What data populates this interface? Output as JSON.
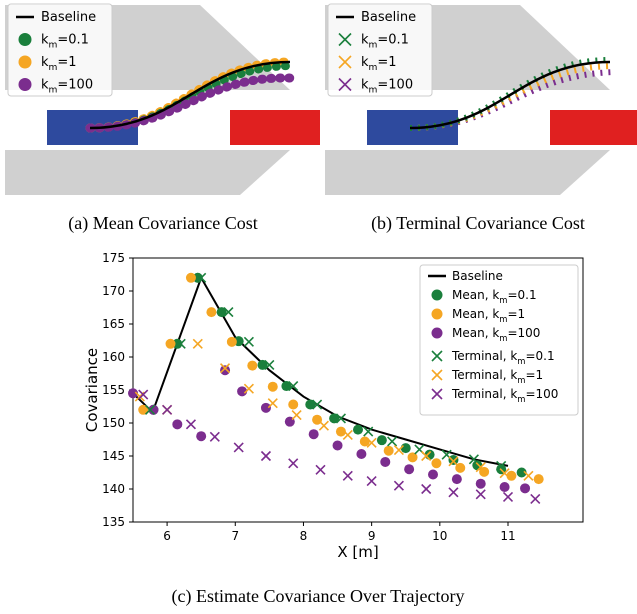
{
  "panels": [
    {
      "caption": "(a) Mean Covariance Cost",
      "marker": "o",
      "legend": [
        {
          "name": "Baseline",
          "color": "#000000"
        },
        {
          "name": "km=0.1",
          "color": "#1a7f3c"
        },
        {
          "name": "km=1",
          "color": "#f5a623"
        },
        {
          "name": "km=100",
          "color": "#7b2d8e"
        }
      ]
    },
    {
      "caption": "(b) Terminal Covariance Cost",
      "marker": "x",
      "legend": [
        {
          "name": "Baseline",
          "color": "#000000"
        },
        {
          "name": "km=0.1",
          "color": "#1a7f3c"
        },
        {
          "name": "km=1",
          "color": "#f5a623"
        },
        {
          "name": "km=100",
          "color": "#7b2d8e"
        }
      ]
    }
  ],
  "chart_data": {
    "type": "scatter",
    "caption": "(c) Estimate Covariance Over Trajectory",
    "x_label": "X [m]",
    "y_label": "Covariance",
    "xlim": [
      5.5,
      12.1
    ],
    "ylim": [
      135,
      175
    ],
    "xticks": [
      6,
      7,
      8,
      9,
      10,
      11
    ],
    "yticks": [
      135,
      140,
      145,
      150,
      155,
      160,
      165,
      170,
      175
    ],
    "series": [
      {
        "name": "Baseline",
        "color": "#000000",
        "marker": "line",
        "x": [
          5.5,
          5.75,
          5.8,
          6.5,
          7,
          7.5,
          8,
          8.5,
          9,
          9.5,
          10,
          10.5,
          11
        ],
        "values": [
          154.5,
          152,
          152,
          172,
          163,
          158,
          154,
          151,
          149,
          147.5,
          146,
          144.5,
          143.5
        ]
      },
      {
        "name": "Mean, km=0.1",
        "color": "#1a7f3c",
        "marker": "o",
        "x": [
          5.8,
          6.15,
          6.45,
          6.8,
          7.05,
          7.4,
          7.75,
          8.1,
          8.45,
          8.8,
          9.15,
          9.5,
          9.85,
          10.2,
          10.55,
          10.9,
          11.2
        ],
        "values": [
          152,
          162,
          172,
          166.8,
          162.4,
          158.8,
          155.6,
          152.8,
          150.7,
          149,
          147.4,
          146.2,
          145.2,
          144.4,
          143.6,
          143,
          142.5
        ]
      },
      {
        "name": "Mean, km=1",
        "color": "#f5a623",
        "marker": "o",
        "x": [
          5.65,
          6.05,
          6.35,
          6.65,
          6.95,
          7.25,
          7.55,
          7.85,
          8.2,
          8.55,
          8.9,
          9.25,
          9.6,
          9.95,
          10.3,
          10.65,
          11.05,
          11.45
        ],
        "values": [
          152,
          162,
          172,
          166.8,
          162.3,
          158.7,
          155.5,
          152.8,
          150.5,
          148.7,
          147.2,
          145.8,
          144.8,
          143.9,
          143.2,
          142.6,
          142,
          141.5
        ]
      },
      {
        "name": "Mean, km=100",
        "color": "#7b2d8e",
        "marker": "o",
        "x": [
          5.5,
          5.8,
          6.15,
          6.5,
          6.85,
          7.1,
          7.45,
          7.8,
          8.15,
          8.5,
          8.85,
          9.2,
          9.55,
          9.9,
          10.25,
          10.6,
          10.95,
          11.25
        ],
        "values": [
          154.5,
          152,
          149.8,
          148,
          158,
          154.8,
          152.3,
          150.2,
          148.3,
          146.6,
          145.3,
          144.1,
          143,
          142.2,
          141.5,
          140.8,
          140.3,
          140.1
        ]
      },
      {
        "name": "Terminal, km=0.1",
        "color": "#1a7f3c",
        "marker": "x",
        "x": [
          5.75,
          6.2,
          6.5,
          6.9,
          7.2,
          7.5,
          7.85,
          8.2,
          8.55,
          8.95,
          9.3,
          9.7,
          10.1,
          10.5,
          10.9
        ],
        "values": [
          152,
          162,
          172,
          166.8,
          162.3,
          158.8,
          155.6,
          152.8,
          150.7,
          148.7,
          147.2,
          146,
          145.2,
          144.5,
          143.5
        ]
      },
      {
        "name": "Terminal, km=1",
        "color": "#f5a623",
        "marker": "x",
        "x": [
          5.6,
          6.0,
          6.45,
          6.85,
          7.2,
          7.55,
          7.9,
          8.3,
          8.65,
          9.0,
          9.4,
          9.8,
          10.2,
          10.6,
          10.95,
          11.3
        ],
        "values": [
          154,
          152,
          162,
          158.3,
          155.2,
          153,
          151.2,
          149.6,
          148.2,
          147,
          145.9,
          145,
          144.2,
          143.3,
          142.4,
          142
        ]
      },
      {
        "name": "Terminal, km=100",
        "color": "#7b2d8e",
        "marker": "x",
        "x": [
          5.65,
          6.0,
          6.35,
          6.7,
          7.05,
          7.45,
          7.85,
          8.25,
          8.65,
          9.0,
          9.4,
          9.8,
          10.2,
          10.6,
          11.0,
          11.4
        ],
        "values": [
          154.3,
          152,
          149.8,
          147.9,
          146.3,
          145,
          143.9,
          142.9,
          142,
          141.2,
          140.5,
          140,
          139.5,
          139.2,
          138.8,
          138.5
        ]
      }
    ]
  }
}
